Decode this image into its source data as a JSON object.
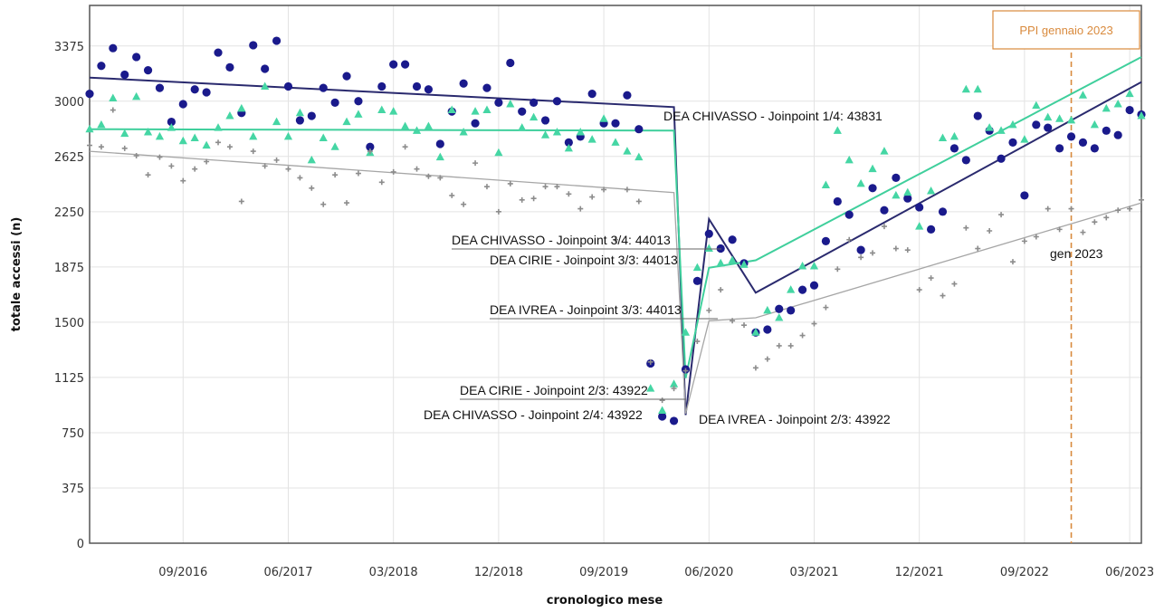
{
  "colors": {
    "chivasso": "#1a1a8c",
    "chivasso_line": "#2a2a6e",
    "cirie": "#45d6a4",
    "cirie_line": "#3fcf9c",
    "ivrea": "#8c8c8c",
    "ivrea_line": "#a6a6a6",
    "ppi": "#d98a3d"
  },
  "chart_data": {
    "type": "scatter",
    "xlabel": "cronologico mese",
    "ylabel": "totale accessi (n)",
    "x_ticks": [
      "09/2016",
      "06/2017",
      "03/2018",
      "12/2018",
      "09/2019",
      "06/2020",
      "03/2021",
      "12/2021",
      "09/2022",
      "06/2023"
    ],
    "y_ticks": [
      0,
      375,
      750,
      1125,
      1500,
      1875,
      2250,
      2625,
      3000,
      3375
    ],
    "ylim": [
      0,
      3650
    ],
    "x_range": [
      "01/2016",
      "06/2023"
    ],
    "grid": true,
    "x_month_index_start": "01/2016",
    "series": [
      {
        "key": "chivasso",
        "marker": "circle",
        "values": [
          3050,
          3240,
          3360,
          3180,
          3300,
          3210,
          3090,
          2860,
          2980,
          3080,
          3060,
          3330,
          3230,
          2920,
          3380,
          3220,
          3410,
          3100,
          2870,
          2900,
          3090,
          2990,
          3170,
          3000,
          2690,
          3100,
          3250,
          3250,
          3100,
          3080,
          2710,
          2930,
          3120,
          2850,
          3090,
          2990,
          3260,
          2930,
          2990,
          2870,
          3000,
          2720,
          2760,
          3050,
          2850,
          2850,
          3040,
          2810,
          1220,
          860,
          830,
          1180,
          1780,
          2100,
          2000,
          2060,
          1900,
          1430,
          1450,
          1590,
          1580,
          1720,
          1750,
          2050,
          2320,
          2230,
          1990,
          2410,
          2260,
          2480,
          2340,
          2280,
          2130,
          2250,
          2680,
          2600,
          2900,
          2800,
          2610,
          2720,
          2360,
          2840,
          2820,
          2680,
          2760,
          2720,
          2680,
          2800,
          2770,
          2940,
          2910
        ]
      },
      {
        "key": "cirie",
        "marker": "triangle",
        "values": [
          2810,
          2840,
          3020,
          2780,
          3030,
          2790,
          2760,
          2820,
          2730,
          2750,
          2700,
          2820,
          2900,
          2950,
          2760,
          3100,
          2860,
          2760,
          2920,
          2600,
          2750,
          2690,
          2860,
          2910,
          2650,
          2940,
          2930,
          2830,
          2800,
          2830,
          2620,
          2940,
          2790,
          2930,
          2940,
          2650,
          2980,
          2820,
          2890,
          2770,
          2790,
          2680,
          2790,
          2740,
          2880,
          2720,
          2660,
          2620,
          1050,
          900,
          1080,
          1430,
          1870,
          2000,
          1900,
          1920,
          1890,
          1430,
          1580,
          1530,
          1720,
          1880,
          1880,
          2430,
          2800,
          2600,
          2440,
          2540,
          2660,
          2360,
          2380,
          2150,
          2390,
          2750,
          2760,
          3080,
          3080,
          2820,
          2800,
          2840,
          2740,
          2970,
          2890,
          2880,
          2870,
          3040,
          2840,
          2950,
          2980,
          3050,
          2900
        ]
      },
      {
        "key": "ivrea",
        "marker": "plus",
        "values": [
          2700,
          2690,
          2940,
          2680,
          2630,
          2500,
          2620,
          2560,
          2460,
          2540,
          2590,
          2720,
          2690,
          2320,
          2660,
          2560,
          2600,
          2540,
          2480,
          2410,
          2300,
          2500,
          2310,
          2510,
          2660,
          2450,
          2520,
          2690,
          2540,
          2490,
          2480,
          2360,
          2300,
          2580,
          2420,
          2250,
          2440,
          2330,
          2340,
          2420,
          2420,
          2370,
          2270,
          2350,
          2400,
          2060,
          2400,
          2320,
          1230,
          970,
          1050,
          1170,
          1370,
          1580,
          1720,
          1510,
          1480,
          1190,
          1250,
          1340,
          1340,
          1410,
          1490,
          1600,
          1860,
          2060,
          1940,
          1970,
          2150,
          2000,
          1990,
          1720,
          1800,
          1680,
          1760,
          2140,
          2000,
          2120,
          2230,
          1910,
          2050,
          2080,
          2270,
          2130,
          2270,
          2110,
          2180,
          2210,
          2260,
          2270,
          2330
        ]
      }
    ],
    "trend_lines": [
      {
        "key": "chivasso",
        "points": [
          [
            0,
            3160
          ],
          [
            50,
            2960
          ],
          [
            51,
            870
          ],
          [
            53,
            2200
          ],
          [
            57,
            1700
          ],
          [
            90,
            3130
          ]
        ]
      },
      {
        "key": "cirie",
        "points": [
          [
            0,
            2810
          ],
          [
            50,
            2800
          ],
          [
            51,
            1120
          ],
          [
            53,
            1870
          ],
          [
            57,
            1920
          ],
          [
            90,
            3300
          ]
        ]
      },
      {
        "key": "ivrea",
        "points": [
          [
            0,
            2660
          ],
          [
            50,
            2380
          ],
          [
            51,
            880
          ],
          [
            53,
            1510
          ],
          [
            57,
            1530
          ],
          [
            90,
            2310
          ]
        ]
      }
    ],
    "annotations": [
      {
        "id": "a1",
        "text": "DEA CHIVASSO - Joinpoint 1/4:  43831"
      },
      {
        "id": "a2",
        "text": "DEA CHIVASSO - Joinpoint 3/4:  44013"
      },
      {
        "id": "a3",
        "text": "DEA CIRIE - Joinpoint 3/3:  44013"
      },
      {
        "id": "a4",
        "text": "DEA IVREA - Joinpoint 3/3:  44013"
      },
      {
        "id": "a5",
        "text": "DEA CIRIE - Joinpoint 2/3:  43922"
      },
      {
        "id": "a6",
        "text": "DEA CHIVASSO - Joinpoint 2/4:  43922"
      },
      {
        "id": "a7",
        "text": "DEA IVREA - Joinpoint 2/3:  43922"
      }
    ],
    "reference_line": {
      "month_index": 84,
      "box_label": "PPI gennaio 2023",
      "inline_label": "gen 2023"
    }
  }
}
